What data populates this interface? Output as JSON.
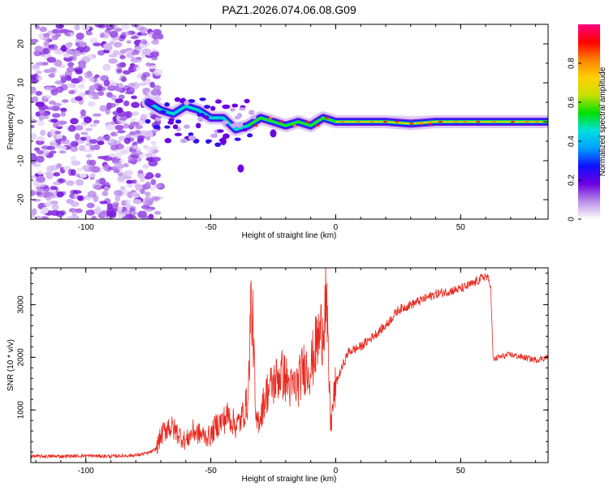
{
  "title": "PAZ1.2026.074.06.08.G09",
  "chart_data": [
    {
      "type": "heatmap",
      "name": "spectrogram",
      "xlabel": "Height of straight line (km)",
      "ylabel": "Frequency (Hz)",
      "xlim": [
        -122,
        85
      ],
      "ylim": [
        -25,
        25
      ],
      "xticks": [
        -100,
        -50,
        0,
        50
      ],
      "yticks": [
        -20,
        -10,
        0,
        10,
        20
      ],
      "colorbar": {
        "label": "Normalized spectral amplitude",
        "range": [
          0,
          1
        ],
        "ticks": [
          0,
          0.2,
          0.4,
          0.6,
          0.8
        ],
        "colors": [
          "#ffffff",
          "#b98ee8",
          "#6b00e0",
          "#1010ff",
          "#00a0ff",
          "#00e0e0",
          "#00e000",
          "#c8e000",
          "#ffd000",
          "#ff8000",
          "#ff0000",
          "#ff0080"
        ]
      },
      "noise_region": {
        "x_from": -122,
        "x_to": -72,
        "f_from": -25,
        "f_to": 25
      },
      "ridge": [
        {
          "x": -75,
          "f": 5
        },
        {
          "x": -70,
          "f": 3
        },
        {
          "x": -65,
          "f": 2
        },
        {
          "x": -60,
          "f": 4
        },
        {
          "x": -55,
          "f": 3
        },
        {
          "x": -50,
          "f": 1
        },
        {
          "x": -45,
          "f": 1
        },
        {
          "x": -40,
          "f": -2
        },
        {
          "x": -35,
          "f": -1
        },
        {
          "x": -30,
          "f": 1
        },
        {
          "x": -25,
          "f": 0
        },
        {
          "x": -20,
          "f": -1
        },
        {
          "x": -15,
          "f": 0
        },
        {
          "x": -10,
          "f": -1
        },
        {
          "x": -5,
          "f": 1
        },
        {
          "x": 0,
          "f": 0
        },
        {
          "x": 10,
          "f": 0
        },
        {
          "x": 20,
          "f": 0
        },
        {
          "x": 30,
          "f": -0.5
        },
        {
          "x": 40,
          "f": 0
        },
        {
          "x": 50,
          "f": 0
        },
        {
          "x": 60,
          "f": 0
        },
        {
          "x": 70,
          "f": 0
        },
        {
          "x": 85,
          "f": 0
        }
      ],
      "outliers": [
        {
          "x": -38,
          "f": -12
        },
        {
          "x": -45,
          "f": -5
        },
        {
          "x": -25,
          "f": -3
        }
      ]
    },
    {
      "type": "line",
      "name": "snr",
      "color": "#e8281e",
      "xlabel": "Height of straight line (km)",
      "ylabel": "SNR (10 * v/v)",
      "xlim": [
        -122,
        85
      ],
      "ylim": [
        0,
        3700
      ],
      "xticks": [
        -100,
        -50,
        0,
        50
      ],
      "yticks": [
        1000,
        2000,
        3000
      ],
      "series": [
        {
          "name": "SNR",
          "x": [
            -122,
            -110,
            -100,
            -90,
            -80,
            -75,
            -72,
            -70,
            -67,
            -64,
            -60,
            -57,
            -55,
            -52,
            -50,
            -48,
            -45,
            -43,
            -40,
            -38,
            -35,
            -34,
            -33,
            -32,
            -30,
            -28,
            -25,
            -22,
            -20,
            -18,
            -15,
            -13,
            -10,
            -8,
            -5,
            -4,
            -3,
            -2,
            0,
            5,
            10,
            15,
            20,
            25,
            30,
            35,
            40,
            45,
            50,
            55,
            60,
            62,
            63,
            65,
            70,
            75,
            80,
            85
          ],
          "y": [
            120,
            120,
            130,
            120,
            140,
            180,
            250,
            500,
            700,
            600,
            400,
            600,
            550,
            500,
            500,
            700,
            800,
            900,
            700,
            800,
            1200,
            3000,
            2500,
            700,
            900,
            1300,
            1500,
            1700,
            1600,
            1400,
            1500,
            1800,
            1800,
            2200,
            2600,
            3200,
            2000,
            700,
            1500,
            2100,
            2200,
            2400,
            2600,
            2900,
            3000,
            3100,
            3200,
            3250,
            3300,
            3400,
            3550,
            3400,
            1950,
            2000,
            2050,
            2000,
            1950,
            2000
          ]
        }
      ]
    }
  ]
}
